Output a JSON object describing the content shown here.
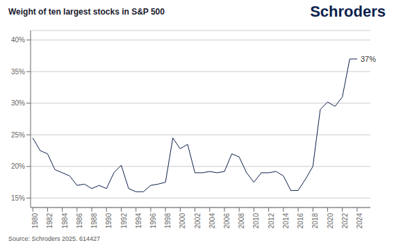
{
  "chart_data": {
    "type": "line",
    "title": "Weight of ten largest stocks in S&P 500",
    "x": [
      1980,
      1981,
      1982,
      1983,
      1984,
      1985,
      1986,
      1987,
      1988,
      1989,
      1990,
      1991,
      1992,
      1993,
      1994,
      1995,
      1996,
      1997,
      1998,
      1999,
      2000,
      2001,
      2002,
      2003,
      2004,
      2005,
      2006,
      2007,
      2008,
      2009,
      2010,
      2011,
      2012,
      2013,
      2014,
      2015,
      2016,
      2017,
      2018,
      2019,
      2020,
      2021,
      2022,
      2023,
      2024
    ],
    "values": [
      24.5,
      22.5,
      22.0,
      19.5,
      19.0,
      18.5,
      17.0,
      17.2,
      16.5,
      17.0,
      16.5,
      19.0,
      20.2,
      16.5,
      16.0,
      16.0,
      17.0,
      17.2,
      17.5,
      24.5,
      22.8,
      23.5,
      19.0,
      19.0,
      19.2,
      19.0,
      19.2,
      22.0,
      21.5,
      19.0,
      17.5,
      19.0,
      19.0,
      19.2,
      18.5,
      16.2,
      16.2,
      18.0,
      20.0,
      29.0,
      30.2,
      29.5,
      31.0,
      37.0,
      37.0
    ],
    "color": "#0d1f4c",
    "xlim": [
      1979.7,
      2025.8
    ],
    "xticks": [
      1980,
      1982,
      1984,
      1986,
      1988,
      1990,
      1992,
      1994,
      1996,
      1998,
      2000,
      2002,
      2004,
      2006,
      2008,
      2010,
      2012,
      2014,
      2016,
      2018,
      2020,
      2022,
      2024
    ],
    "ylim": [
      13.5,
      41.5
    ],
    "yticks": [
      {
        "value": 15,
        "label": "15%"
      },
      {
        "value": 20,
        "label": "20%"
      },
      {
        "value": 25,
        "label": "25%"
      },
      {
        "value": 30,
        "label": "30%"
      },
      {
        "value": 35,
        "label": "35%"
      },
      {
        "value": 40,
        "label": "40%"
      }
    ],
    "grid": true,
    "annotations": [
      {
        "text": "37%",
        "x": 2024,
        "y": 37
      },
      {
        "text": "Schroders"
      },
      {
        "text": "Source: Schroders 2025. 614427"
      }
    ]
  }
}
